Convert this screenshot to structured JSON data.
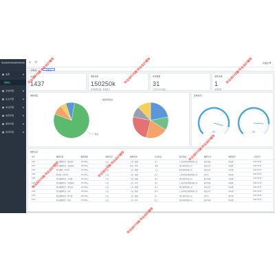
{
  "sidebar": {
    "title": "物业收费管理系统管理系统",
    "items": [
      {
        "label": "主页",
        "kind": "parent"
      },
      {
        "label": "控制台",
        "kind": "active"
      },
      {
        "label": "系统管理",
        "kind": "item"
      },
      {
        "label": "业主管理",
        "kind": "item"
      },
      {
        "label": "车位管理",
        "kind": "item"
      },
      {
        "label": "收费管理",
        "kind": "item"
      },
      {
        "label": "报修管理",
        "kind": "item"
      },
      {
        "label": "投诉管理",
        "kind": "item"
      }
    ]
  },
  "header": {
    "user_label": "管理员",
    "icons": [
      "menu-fold-icon",
      "refresh-icon"
    ]
  },
  "tabs": {
    "items": [
      {
        "label": "控制台",
        "active": false
      },
      {
        "label": "控制台",
        "active": true
      }
    ],
    "close_icon": "close-icon"
  },
  "stats": [
    {
      "title": "业主数",
      "value": "1437",
      "sub": ""
    },
    {
      "title": "缴费总额",
      "value": "150250k",
      "sub": "本月缴费总额 · 收费统计"
    },
    {
      "title": "车位数量",
      "value": "31",
      "sub": "已出租 车位总数"
    },
    {
      "title": "报修总数",
      "value": "1",
      "sub": "本周报修"
    }
  ],
  "charts": {
    "pie_card_title": "缴费类型",
    "gauge_card_title": "完成情况",
    "pie_left_title": "",
    "pie_right_title": "收费类型统计",
    "pie_left_label": "物业",
    "gauge_values": [
      "89",
      "85"
    ]
  },
  "chart_data": [
    {
      "type": "pie",
      "title": "",
      "slices": [
        {
          "label": "物业",
          "value": 78,
          "color": "#5cba6e"
        },
        {
          "label": "",
          "value": 9,
          "color": "#f4a36b"
        },
        {
          "label": "",
          "value": 5,
          "color": "#f6cf58"
        },
        {
          "label": "",
          "value": 8,
          "color": "#5a96d8"
        }
      ]
    },
    {
      "type": "pie",
      "title": "收费类型统计",
      "slices": [
        {
          "label": "",
          "value": 22,
          "color": "#5a96d8"
        },
        {
          "label": "",
          "value": 12,
          "color": "#6fc08a"
        },
        {
          "label": "",
          "value": 20,
          "color": "#f4a36b"
        },
        {
          "label": "",
          "value": 24,
          "color": "#e37373"
        },
        {
          "label": "",
          "value": 10,
          "color": "#9aa0ad"
        },
        {
          "label": "",
          "value": 12,
          "color": "#f6cf58"
        }
      ]
    }
  ],
  "table": {
    "title": "缴费记录",
    "columns": [
      "序号",
      "缴费名称",
      "缴费金额",
      "缴费时间",
      "缴费状态",
      "业主姓名",
      "联系地址",
      "缴费方式",
      "收费类型",
      "入住时间"
    ],
    "rows": [
      [
        "1001",
        "测试缴费项目（物业费）",
        "150,000元",
        "已交",
        "上海 · 楼盘",
        "张三",
        "上海市物业管理有限公司",
        "银行转账",
        "物业费",
        "2022-05-01"
      ],
      [
        "1002",
        "测试缴费项目 · 房屋维修",
        "108,000元",
        "已交",
        "物业 · 停车",
        "李四",
        "浦东新区物业公司",
        "现金支付",
        "维修费",
        "2022-05-02"
      ],
      [
        "1003",
        "测试缴费 · 停车费",
        "120,000元",
        "已交",
        "上海 · 楼盘",
        "王五",
        "物业管理有限公司",
        "微信支付",
        "停车费",
        "2022-05-03"
      ],
      [
        "1004",
        "物业费（2022年）",
        "150,000元",
        "已交",
        "上海 · 楼盘",
        "赵六",
        "上海市物业管理有限公司",
        "支付宝",
        "物业费",
        "2022-05-04"
      ],
      [
        "1005",
        "测试缴费项目 · 水电费",
        "150,000元",
        "已交",
        "上海 · 楼盘",
        "孙七",
        "浦东新区物业公司",
        "银行转账",
        "水电费",
        "2022-05-05"
      ],
      [
        "1006",
        "测试缴费项目 · 房屋维修",
        "150,000元",
        "已交",
        "上海 · 停车",
        "周八",
        "上海市物业管理有限公司",
        "银行转账",
        "维修费",
        "2022-05-06"
      ],
      [
        "1007",
        "测试缴费项目（物业费）",
        "140,000元",
        "已交",
        "上海 · 楼盘",
        "吴九",
        "物业管理有限公司",
        "现金支付",
        "物业费",
        "2022-05-07"
      ],
      [
        "1008",
        "测试缴费项目 · 停车",
        "100,000元",
        "已交",
        "上海 · 楼盘",
        "郑十",
        "上海市物业管理有限公司",
        "微信支付",
        "停车费",
        "2022-05-08"
      ],
      [
        "1009",
        "测试缴费项目 · 燃气费",
        "150,000元",
        "已交",
        "上海 · 楼盘",
        "钱一",
        "浦东新区物业公司",
        "支付宝",
        "燃气费",
        "2022-05-09"
      ],
      [
        "1010",
        "测试缴费项目 · 物业",
        "100,000元",
        "已交",
        "上海 · 停车",
        "陈二",
        "物业管理有限公司",
        "银行转账",
        "物业费",
        "2022-05-10"
      ]
    ]
  },
  "watermarks": [
    "毕业设计代做·毕业设计辅导",
    "毕业设计代做·毕业设计辅导",
    "毕业设计代做·毕业设计辅导",
    "毕业设计代做·毕业设计辅导",
    "毕业设计代做·毕业设计辅导",
    "毕业设计代做·毕业设计辅导",
    "毕业设计代做·毕业设计辅导"
  ]
}
